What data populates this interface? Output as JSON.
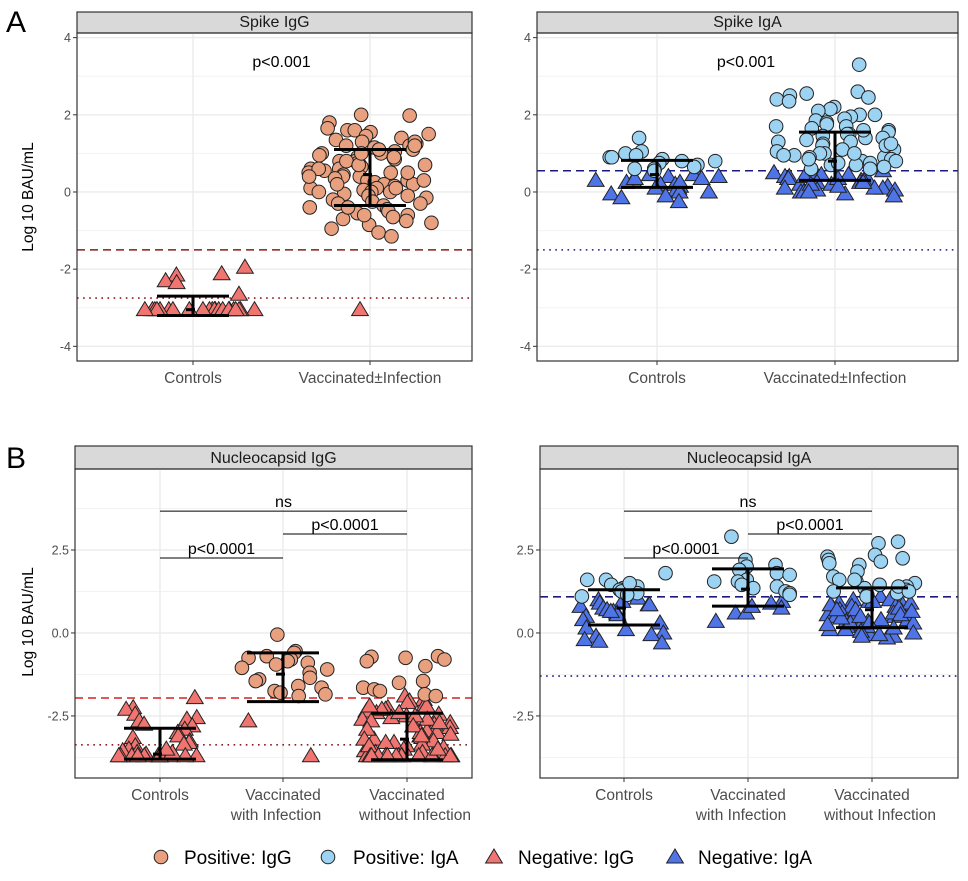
{
  "panel_letters": [
    "A",
    "B"
  ],
  "ylabel": "Log 10 BAU/mL",
  "colors": {
    "positive_igg": "#E9A07F",
    "positive_iga": "#9DD3F2",
    "negative_igg": "#F07470",
    "negative_iga": "#4F74E8",
    "igg_threshold_dashed_A": "#8B1A1A",
    "igg_threshold_dashed_B": "#D62020",
    "igg_threshold_dotted": "#8B1A1A",
    "iga_threshold": "#1A1A80"
  },
  "legend": [
    {
      "label": "Positive: IgG",
      "shape": "circle",
      "key": "positive_igg"
    },
    {
      "label": "Positive: IgA",
      "shape": "circle",
      "key": "positive_iga"
    },
    {
      "label": "Negative: IgG",
      "shape": "triangle",
      "key": "negative_igg"
    },
    {
      "label": "Negative: IgA",
      "shape": "triangle",
      "key": "negative_iga"
    }
  ],
  "chart_data": [
    {
      "type": "scatter",
      "title": "Spike IgG",
      "panel": "A",
      "ylabel": "Log 10 BAU/mL",
      "ylim": [
        -4.38,
        4.12
      ],
      "yticks": [
        "4",
        "2",
        "0",
        "-2",
        "-4"
      ],
      "ytick_values": [
        4,
        2,
        0,
        -2,
        -4
      ],
      "grid": true,
      "categories": [
        [
          "Controls"
        ],
        [
          "Vaccinated±Infection"
        ]
      ],
      "thresholds": {
        "dashed": -1.5,
        "dotted": -2.75,
        "color_dashed": "igg_threshold_dashed_A",
        "color_dotted": "igg_threshold_dotted"
      },
      "comparisons": [
        {
          "from": 0,
          "to": 1,
          "label": "p<0.001",
          "y": 3.4,
          "bracket": false
        }
      ],
      "groups": [
        {
          "positive_igg": [],
          "negative_igg": [
            -3.05,
            -3.05,
            -3.05,
            -3.05,
            -3.05,
            -3.05,
            -3.05,
            -3.05,
            -3.05,
            -3.05,
            -3.05,
            -3.05,
            -3.05,
            -3.05,
            -3.05,
            -3.05,
            -3.05,
            -3.05,
            -3.05,
            -3.05,
            -3.05,
            -3.05,
            -2.12,
            -2.15,
            -2.3,
            -2.35,
            -1.95,
            -2.65
          ],
          "mean": -3.05,
          "lower": -3.2,
          "upper": -2.7
        },
        {
          "positive_igg": [
            2.0,
            1.98,
            1.8,
            1.65,
            1.6,
            1.6,
            1.55,
            1.5,
            1.45,
            1.4,
            1.35,
            1.3,
            1.25,
            1.2,
            1.2,
            1.15,
            1.1,
            1.05,
            1.0,
            1.0,
            0.95,
            0.9,
            0.9,
            0.85,
            0.8,
            0.8,
            0.75,
            0.7,
            0.7,
            0.65,
            0.6,
            0.6,
            0.55,
            0.5,
            0.5,
            0.45,
            0.4,
            0.4,
            0.35,
            0.3,
            0.3,
            0.25,
            0.2,
            0.2,
            0.15,
            0.1,
            0.1,
            0.05,
            0.0,
            0.0,
            -0.05,
            -0.1,
            -0.15,
            -0.2,
            -0.25,
            -0.3,
            -0.35,
            -0.4,
            -0.45,
            -0.5,
            -0.55,
            -0.6,
            -0.65,
            -0.7,
            -0.75,
            -0.8,
            -0.85,
            -0.95,
            -1.05,
            -1.15,
            1.3,
            1.1,
            0.9,
            0.6,
            0.3,
            0.0,
            -0.3,
            -0.6,
            0.5,
            0.8,
            1.2,
            0.2,
            -0.1,
            0.7,
            1.0,
            0.4,
            -0.4,
            0.1
          ],
          "negative_igg": [
            -3.05
          ],
          "mean": 0.45,
          "lower": -0.35,
          "upper": 1.1
        }
      ]
    },
    {
      "type": "scatter",
      "title": "Spike IgA",
      "panel": "A",
      "ylim": [
        -4.38,
        4.12
      ],
      "yticks": [
        "4",
        "2",
        "0",
        "-2",
        "-4"
      ],
      "ytick_values": [
        4,
        2,
        0,
        -2,
        -4
      ],
      "grid": true,
      "categories": [
        [
          "Controls"
        ],
        [
          "Vaccinated±Infection"
        ]
      ],
      "thresholds": {
        "dashed": 0.55,
        "dotted": -1.5,
        "color_dashed": "iga_threshold",
        "color_dotted": "iga_threshold"
      },
      "comparisons": [
        {
          "from": 0,
          "to": 1,
          "label": "p<0.001",
          "y": 3.4,
          "bracket": false
        }
      ],
      "groups": [
        {
          "positive_iga": [
            1.4,
            1.05,
            1.0,
            0.95,
            0.9,
            0.85,
            0.8,
            0.8,
            0.75,
            0.7,
            0.65,
            0.6,
            0.6,
            0.55,
            0.9
          ],
          "negative_iga": [
            0.5,
            0.45,
            0.4,
            0.4,
            0.35,
            0.3,
            0.3,
            0.25,
            0.2,
            0.2,
            0.15,
            0.1,
            0.1,
            0.05,
            0.0,
            0.0,
            -0.05,
            -0.1,
            -0.15,
            -0.25,
            0.45,
            0.35,
            0.25
          ],
          "mean": 0.45,
          "lower": 0.12,
          "upper": 0.82
        },
        {
          "positive_iga": [
            3.3,
            2.6,
            2.55,
            2.5,
            2.45,
            2.4,
            2.35,
            2.2,
            2.15,
            2.1,
            2.0,
            1.95,
            1.9,
            1.85,
            1.8,
            1.75,
            1.7,
            1.65,
            1.6,
            1.55,
            1.5,
            1.45,
            1.4,
            1.35,
            1.3,
            1.25,
            1.2,
            1.15,
            1.1,
            1.05,
            1.0,
            1.0,
            0.95,
            0.9,
            0.9,
            0.85,
            0.8,
            0.8,
            0.75,
            0.7,
            0.7,
            0.65,
            0.6,
            0.6,
            1.5,
            1.3,
            1.1,
            0.95,
            1.2,
            1.4,
            1.7,
            1.0,
            0.85,
            2.0,
            1.6,
            1.25,
            0.75
          ],
          "negative_iga": [
            0.55,
            0.5,
            0.5,
            0.45,
            0.45,
            0.4,
            0.4,
            0.35,
            0.35,
            0.3,
            0.3,
            0.25,
            0.25,
            0.2,
            0.2,
            0.15,
            0.15,
            0.1,
            0.1,
            0.05,
            0.05,
            0.0,
            0.0,
            -0.05,
            -0.1,
            0.4,
            0.3,
            0.2,
            0.1,
            0.0,
            0.35,
            0.25,
            0.15
          ],
          "mean": 0.8,
          "lower": 0.3,
          "upper": 1.55
        }
      ]
    },
    {
      "type": "scatter",
      "title": "Nucleocapsid IgG",
      "panel": "B",
      "ylabel": "Log 10 BAU/mL",
      "ylim": [
        -4.37,
        4.94
      ],
      "yticks": [
        "2.5",
        "0.0",
        "-2.5"
      ],
      "ytick_values": [
        2.5,
        0,
        -2.5
      ],
      "grid": true,
      "categories": [
        [
          "Controls"
        ],
        [
          "Vaccinated",
          "with Infection"
        ],
        [
          "Vaccinated",
          "without Infection"
        ]
      ],
      "thresholds": {
        "dashed": -1.96,
        "dotted": -3.37,
        "color_dashed": "igg_threshold_dashed_B",
        "color_dotted": "igg_threshold_dotted"
      },
      "comparisons": [
        {
          "from": 0,
          "to": 2,
          "label": "ns",
          "y": 3.67,
          "bracket": true
        },
        {
          "from": 0,
          "to": 1,
          "label": "p<0.0001",
          "y": 2.26,
          "bracket": true
        },
        {
          "from": 1,
          "to": 2,
          "label": "p<0.0001",
          "y": 2.98,
          "bracket": true
        }
      ],
      "groups": [
        {
          "positive_igg": [],
          "negative_igg": [
            -1.95,
            -2.25,
            -2.3,
            -2.45,
            -2.55,
            -2.6,
            -2.65,
            -2.75,
            -2.8,
            -2.9,
            -3.0,
            -3.1,
            -3.15,
            -3.25,
            -3.3,
            -3.35,
            -3.4,
            -3.5,
            -3.55,
            -3.6,
            -3.65,
            -3.7,
            -3.7,
            -3.7,
            -3.7,
            -3.7,
            -3.7,
            -3.7,
            -3.7,
            -3.7,
            -3.7,
            -3.7,
            -3.6,
            -3.5
          ],
          "mean": -3.65,
          "lower": -3.8,
          "upper": -2.87
        },
        {
          "positive_igg": [
            -0.05,
            -0.55,
            -0.6,
            -0.7,
            -0.75,
            -0.8,
            -0.85,
            -0.9,
            -0.95,
            -1.05,
            -1.1,
            -1.2,
            -1.35,
            -1.4,
            -1.45,
            -1.6,
            -1.65,
            -1.75,
            -1.8,
            -1.85,
            -1.9
          ],
          "negative_igg": [
            -2.65,
            -3.7
          ],
          "mean": -1.24,
          "lower": -2.07,
          "upper": -0.6
        },
        {
          "positive_igg": [
            -0.7,
            -0.72,
            -0.75,
            -0.8,
            -0.85,
            -1.0,
            -1.45,
            -1.5,
            -1.65,
            -1.7,
            -1.75,
            -1.85,
            -1.9
          ],
          "negative_igg": [
            -1.9,
            -2.0,
            -2.05,
            -2.1,
            -2.15,
            -2.2,
            -2.25,
            -2.3,
            -2.35,
            -2.4,
            -2.45,
            -2.5,
            -2.55,
            -2.6,
            -2.65,
            -2.7,
            -2.75,
            -2.8,
            -2.85,
            -2.9,
            -2.95,
            -3.0,
            -3.05,
            -3.1,
            -3.15,
            -3.2,
            -3.25,
            -3.3,
            -3.35,
            -3.4,
            -3.45,
            -3.5,
            -3.55,
            -3.6,
            -3.65,
            -3.7,
            -3.7,
            -3.7,
            -3.7,
            -3.7,
            -3.7,
            -3.7,
            -3.7,
            -3.7,
            -3.7,
            -3.7,
            -3.7,
            -2.3,
            -2.6,
            -2.9,
            -3.2,
            -3.5,
            -2.4,
            -2.7,
            -3.0,
            -3.3,
            -3.6,
            -2.2,
            -2.5,
            -2.8,
            -3.1,
            -3.4,
            -3.7,
            -3.7,
            -3.7,
            -3.7,
            -3.7,
            -3.7
          ],
          "mean": -3.2,
          "lower": -3.82,
          "upper": -2.42
        }
      ]
    },
    {
      "type": "scatter",
      "title": "Nucleocapsid IgA",
      "panel": "B",
      "ylim": [
        -4.37,
        4.94
      ],
      "yticks": [
        "2.5",
        "0.0",
        "-2.5"
      ],
      "ytick_values": [
        2.5,
        0,
        -2.5
      ],
      "grid": true,
      "categories": [
        [
          "Controls"
        ],
        [
          "Vaccinated",
          "with Infection"
        ],
        [
          "Vaccinated",
          "without Infection"
        ]
      ],
      "thresholds": {
        "dashed": 1.09,
        "dotted": -1.3,
        "color_dashed": "iga_threshold",
        "color_dotted": "iga_threshold"
      },
      "comparisons": [
        {
          "from": 0,
          "to": 2,
          "label": "ns",
          "y": 3.67,
          "bracket": true
        },
        {
          "from": 0,
          "to": 1,
          "label": "p<0.0001",
          "y": 2.26,
          "bracket": true
        },
        {
          "from": 1,
          "to": 2,
          "label": "p<0.0001",
          "y": 2.98,
          "bracket": true
        }
      ],
      "groups": [
        {
          "positive_iga": [
            1.8,
            1.6,
            1.6,
            1.45,
            1.4,
            1.35,
            1.3,
            1.25,
            1.2,
            1.15,
            1.1,
            1.5
          ],
          "negative_iga": [
            1.05,
            1.0,
            0.95,
            0.9,
            0.85,
            0.8,
            0.75,
            0.7,
            0.65,
            0.6,
            0.55,
            0.5,
            0.4,
            0.3,
            0.15,
            0.1,
            0.0,
            -0.05,
            -0.1,
            -0.2,
            -0.25,
            -0.3,
            0.85,
            0.65
          ],
          "mean": 0.75,
          "lower": 0.24,
          "upper": 1.3
        },
        {
          "positive_iga": [
            2.9,
            2.2,
            2.05,
            2.0,
            1.9,
            1.8,
            1.75,
            1.6,
            1.55,
            1.45,
            1.4,
            1.35,
            1.25,
            1.2,
            1.15,
            1.55
          ],
          "negative_iga": [
            0.95,
            0.9,
            0.75,
            0.6,
            0.6,
            0.35,
            0.8
          ],
          "mean": 1.32,
          "lower": 0.81,
          "upper": 1.93
        },
        {
          "positive_iga": [
            2.7,
            2.75,
            2.35,
            2.3,
            2.25,
            2.2,
            2.15,
            2.1,
            2.05,
            1.85,
            1.7,
            1.6,
            1.55,
            1.5,
            1.45,
            1.4,
            1.35,
            1.3,
            1.25,
            1.2,
            1.15,
            1.1,
            1.6,
            1.4,
            1.25
          ],
          "negative_iga": [
            1.1,
            1.05,
            1.0,
            0.95,
            0.9,
            0.85,
            0.8,
            0.75,
            0.7,
            0.65,
            0.6,
            0.55,
            0.5,
            0.45,
            0.4,
            0.35,
            0.3,
            0.25,
            0.2,
            0.15,
            0.1,
            0.05,
            0.0,
            -0.05,
            -0.1,
            -0.15,
            1.0,
            0.9,
            0.8,
            0.7,
            0.6,
            0.5,
            0.4,
            0.3,
            0.2,
            0.1,
            0.0,
            0.95,
            0.75,
            0.55,
            0.35,
            0.15,
            -0.05,
            0.85,
            0.65,
            0.45,
            0.25,
            0.05,
            -0.1,
            0.7,
            0.5,
            0.3
          ],
          "mean": 0.7,
          "lower": 0.16,
          "upper": 1.36
        }
      ]
    }
  ]
}
